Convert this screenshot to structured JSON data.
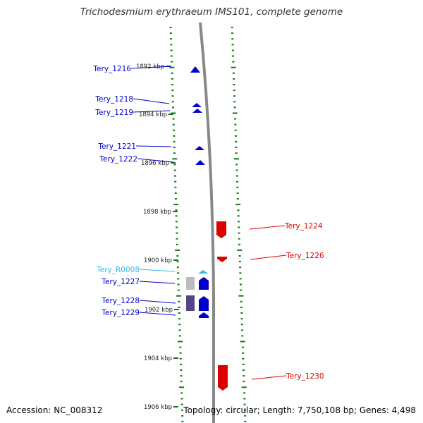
{
  "title": "Trichodesmium erythraeum IMS101, complete genome",
  "accession": "Accession: NC_008312",
  "summary": "Topology: circular; Length: 7,750,108 bp; Genes: 4,498",
  "colors": {
    "forward_gene": "#0000cc",
    "reverse_gene": "#dd0000",
    "rna_gene": "#33bbee",
    "tick": "#117711",
    "axis": "#888888"
  },
  "scale_labels": [
    "1892 kbp",
    "1894 kbp",
    "1896 kbp",
    "1898 kbp",
    "1900 kbp",
    "1902 kbp",
    "1904 kbp",
    "1906 kbp"
  ],
  "genes": [
    {
      "label": "Tery_1216",
      "strand": "forward"
    },
    {
      "label": "Tery_1218",
      "strand": "forward"
    },
    {
      "label": "Tery_1219",
      "strand": "forward"
    },
    {
      "label": "Tery_1221",
      "strand": "forward"
    },
    {
      "label": "Tery_1222",
      "strand": "forward"
    },
    {
      "label": "Tery_1224",
      "strand": "reverse"
    },
    {
      "label": "Tery_1226",
      "strand": "reverse"
    },
    {
      "label": "Tery_R0008",
      "strand": "rna"
    },
    {
      "label": "Tery_1227",
      "strand": "forward"
    },
    {
      "label": "Tery_1228",
      "strand": "forward"
    },
    {
      "label": "Tery_1229",
      "strand": "forward"
    },
    {
      "label": "Tery_1230",
      "strand": "reverse"
    }
  ]
}
